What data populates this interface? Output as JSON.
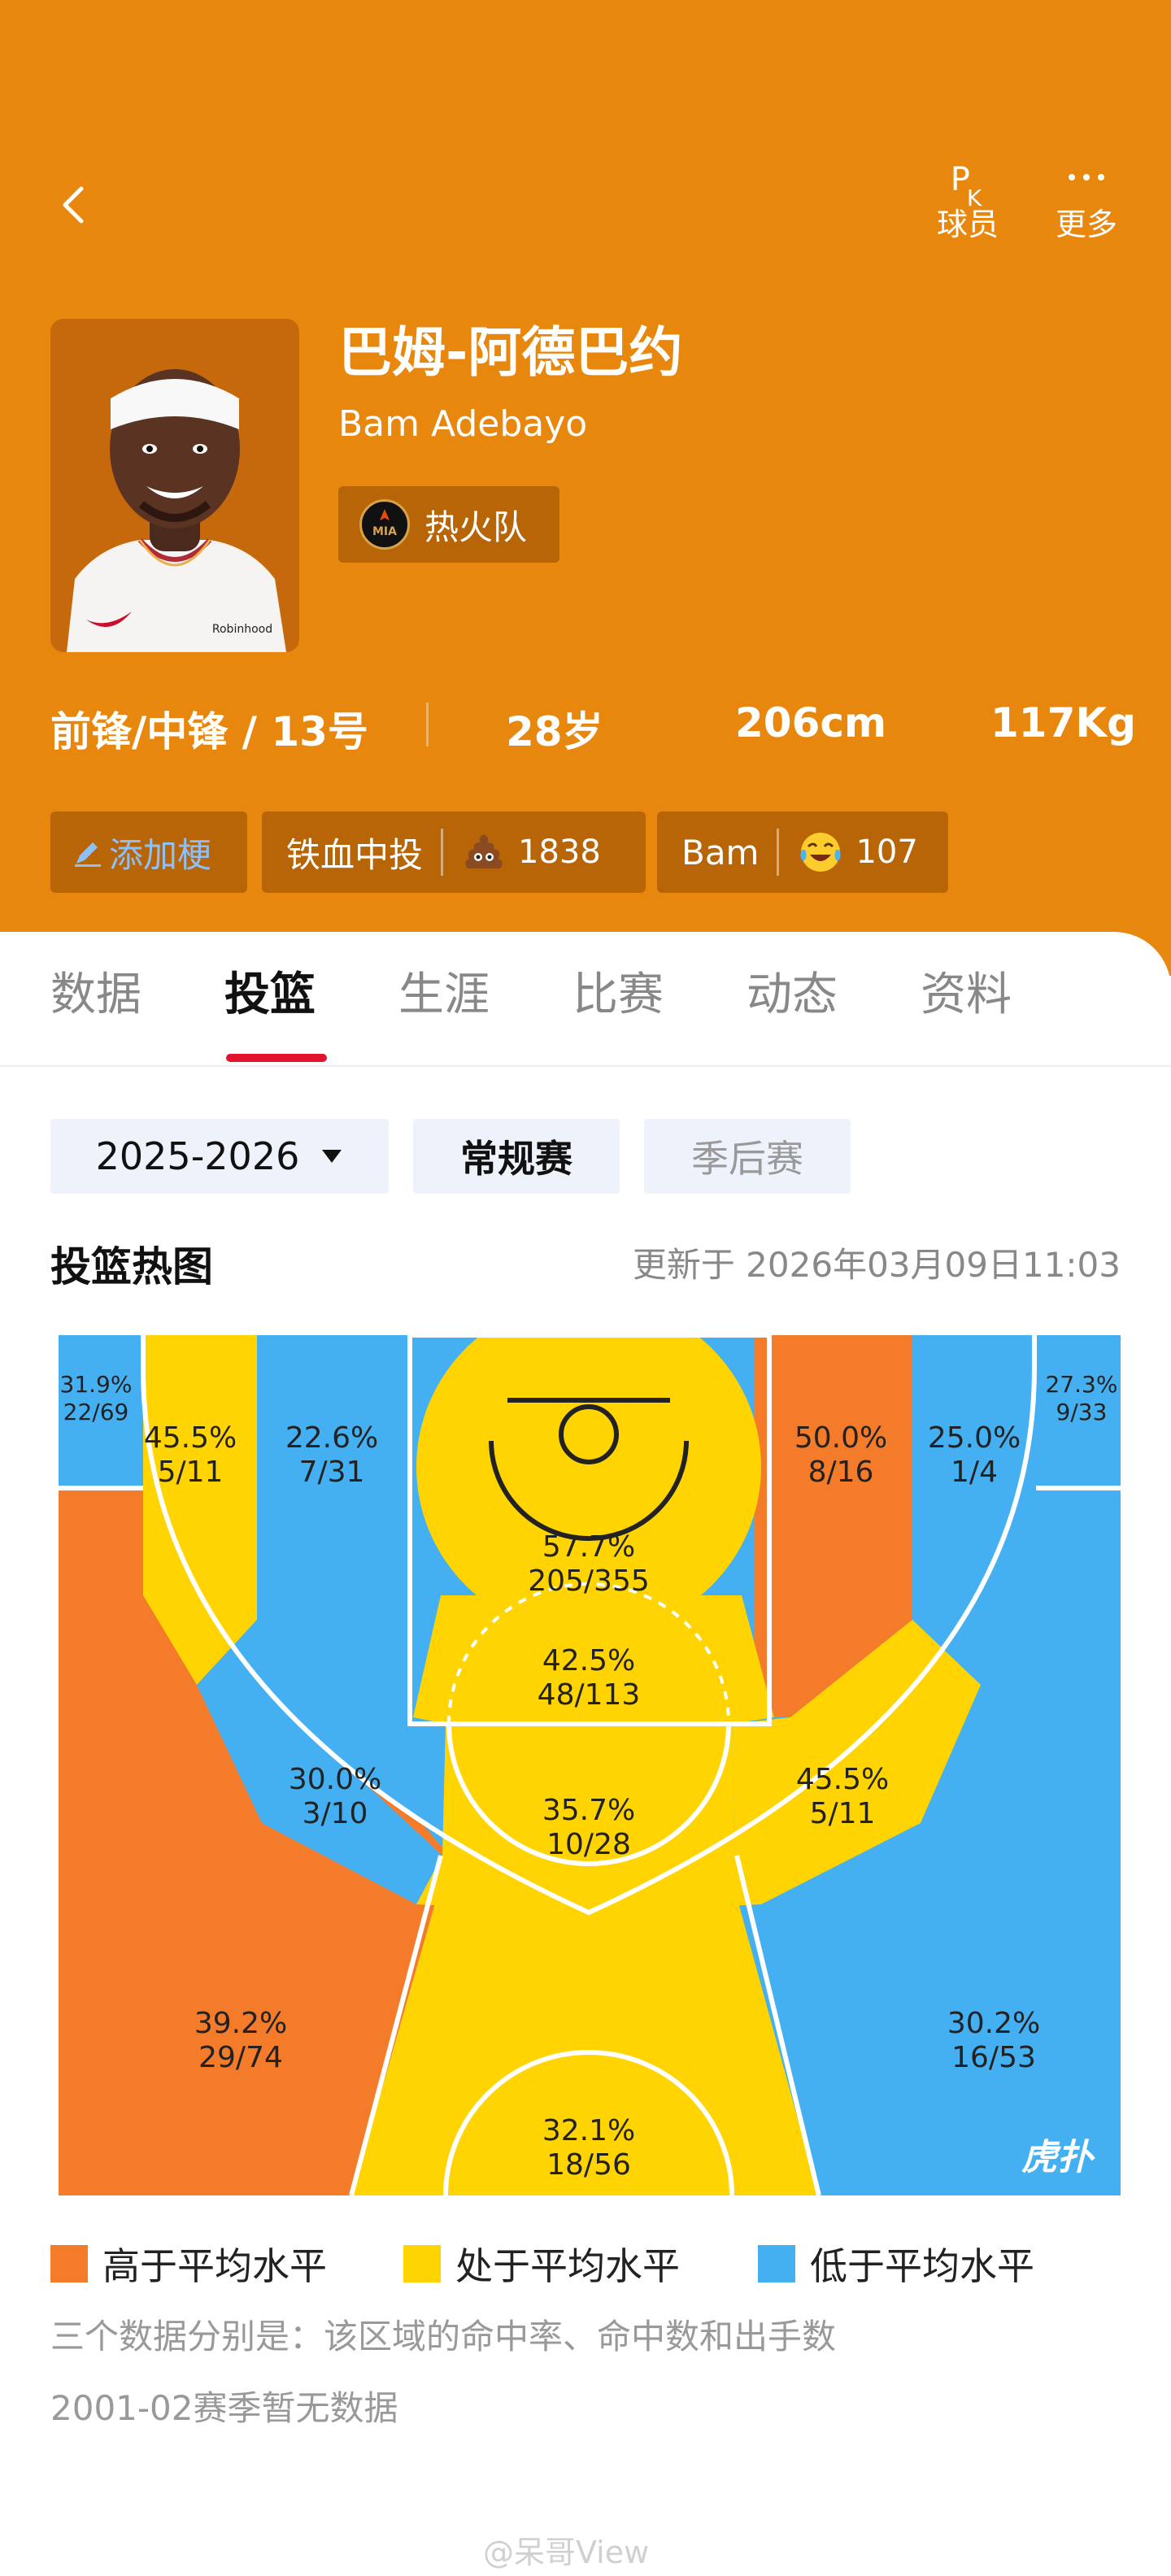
{
  "header": {
    "actions": [
      {
        "icon": "pk-icon",
        "label": "球员"
      },
      {
        "icon": "more-icon",
        "label": "更多"
      }
    ],
    "player": {
      "name_cn": "巴姆-阿德巴约",
      "name_en": "Bam Adebayo",
      "team": "热火队",
      "team_logo_text": "MIA"
    },
    "info": {
      "position": "前锋/中锋 / 13号",
      "age": "28岁",
      "height": "206cm",
      "weight": "117Kg"
    },
    "tags": [
      {
        "label": "添加梗"
      },
      {
        "label": "铁血中投",
        "count": "1838",
        "icon": "poop-emoji-icon"
      },
      {
        "label": "Bam",
        "count": "107",
        "icon": "laughing-crying-emoji-icon"
      }
    ]
  },
  "tabs": [
    "数据",
    "投篮",
    "生涯",
    "比赛",
    "动态",
    "资料"
  ],
  "active_tab": "投篮",
  "filters": {
    "season": "2025-2026",
    "regular": "常规赛",
    "playoffs": "季后赛"
  },
  "section": {
    "title": "投篮热图",
    "updated": "更新于 2026年03月09日11:03"
  },
  "colors": {
    "above": "#f47b2a",
    "average": "#ffd400",
    "below": "#44b0f2",
    "header": "#e8870e",
    "accent": "#e2142d"
  },
  "zones": [
    {
      "id": "left-corner-3",
      "pct": "31.9%",
      "made_att": "22/69",
      "level": "below"
    },
    {
      "id": "left-baseline-mid",
      "pct": "45.5%",
      "made_att": "5/11",
      "level": "average"
    },
    {
      "id": "left-short-mid",
      "pct": "22.6%",
      "made_att": "7/31",
      "level": "below"
    },
    {
      "id": "restricted-area",
      "pct": "57.7%",
      "made_att": "205/355",
      "level": "average"
    },
    {
      "id": "right-short-mid",
      "pct": "50.0%",
      "made_att": "8/16",
      "level": "above"
    },
    {
      "id": "right-baseline-mid",
      "pct": "25.0%",
      "made_att": "1/4",
      "level": "below"
    },
    {
      "id": "right-corner-3",
      "pct": "27.3%",
      "made_att": "9/33",
      "level": "below"
    },
    {
      "id": "paint-non-ra",
      "pct": "42.5%",
      "made_att": "48/113",
      "level": "average"
    },
    {
      "id": "left-elbow-mid",
      "pct": "30.0%",
      "made_att": "3/10",
      "level": "below"
    },
    {
      "id": "top-key-mid",
      "pct": "35.7%",
      "made_att": "10/28",
      "level": "average"
    },
    {
      "id": "right-elbow-mid",
      "pct": "45.5%",
      "made_att": "5/11",
      "level": "average"
    },
    {
      "id": "left-wing-3",
      "pct": "39.2%",
      "made_att": "29/74",
      "level": "above"
    },
    {
      "id": "top-3",
      "pct": "32.1%",
      "made_att": "18/56",
      "level": "average"
    },
    {
      "id": "right-wing-3",
      "pct": "30.2%",
      "made_att": "16/53",
      "level": "below"
    }
  ],
  "court_logo": "虎扑",
  "legend": [
    "高于平均水平",
    "处于平均水平",
    "低于平均水平"
  ],
  "notes": [
    "三个数据分别是：该区域的命中率、命中数和出手数",
    "2001-02赛季暂无数据"
  ],
  "watermark": "@呆哥View"
}
